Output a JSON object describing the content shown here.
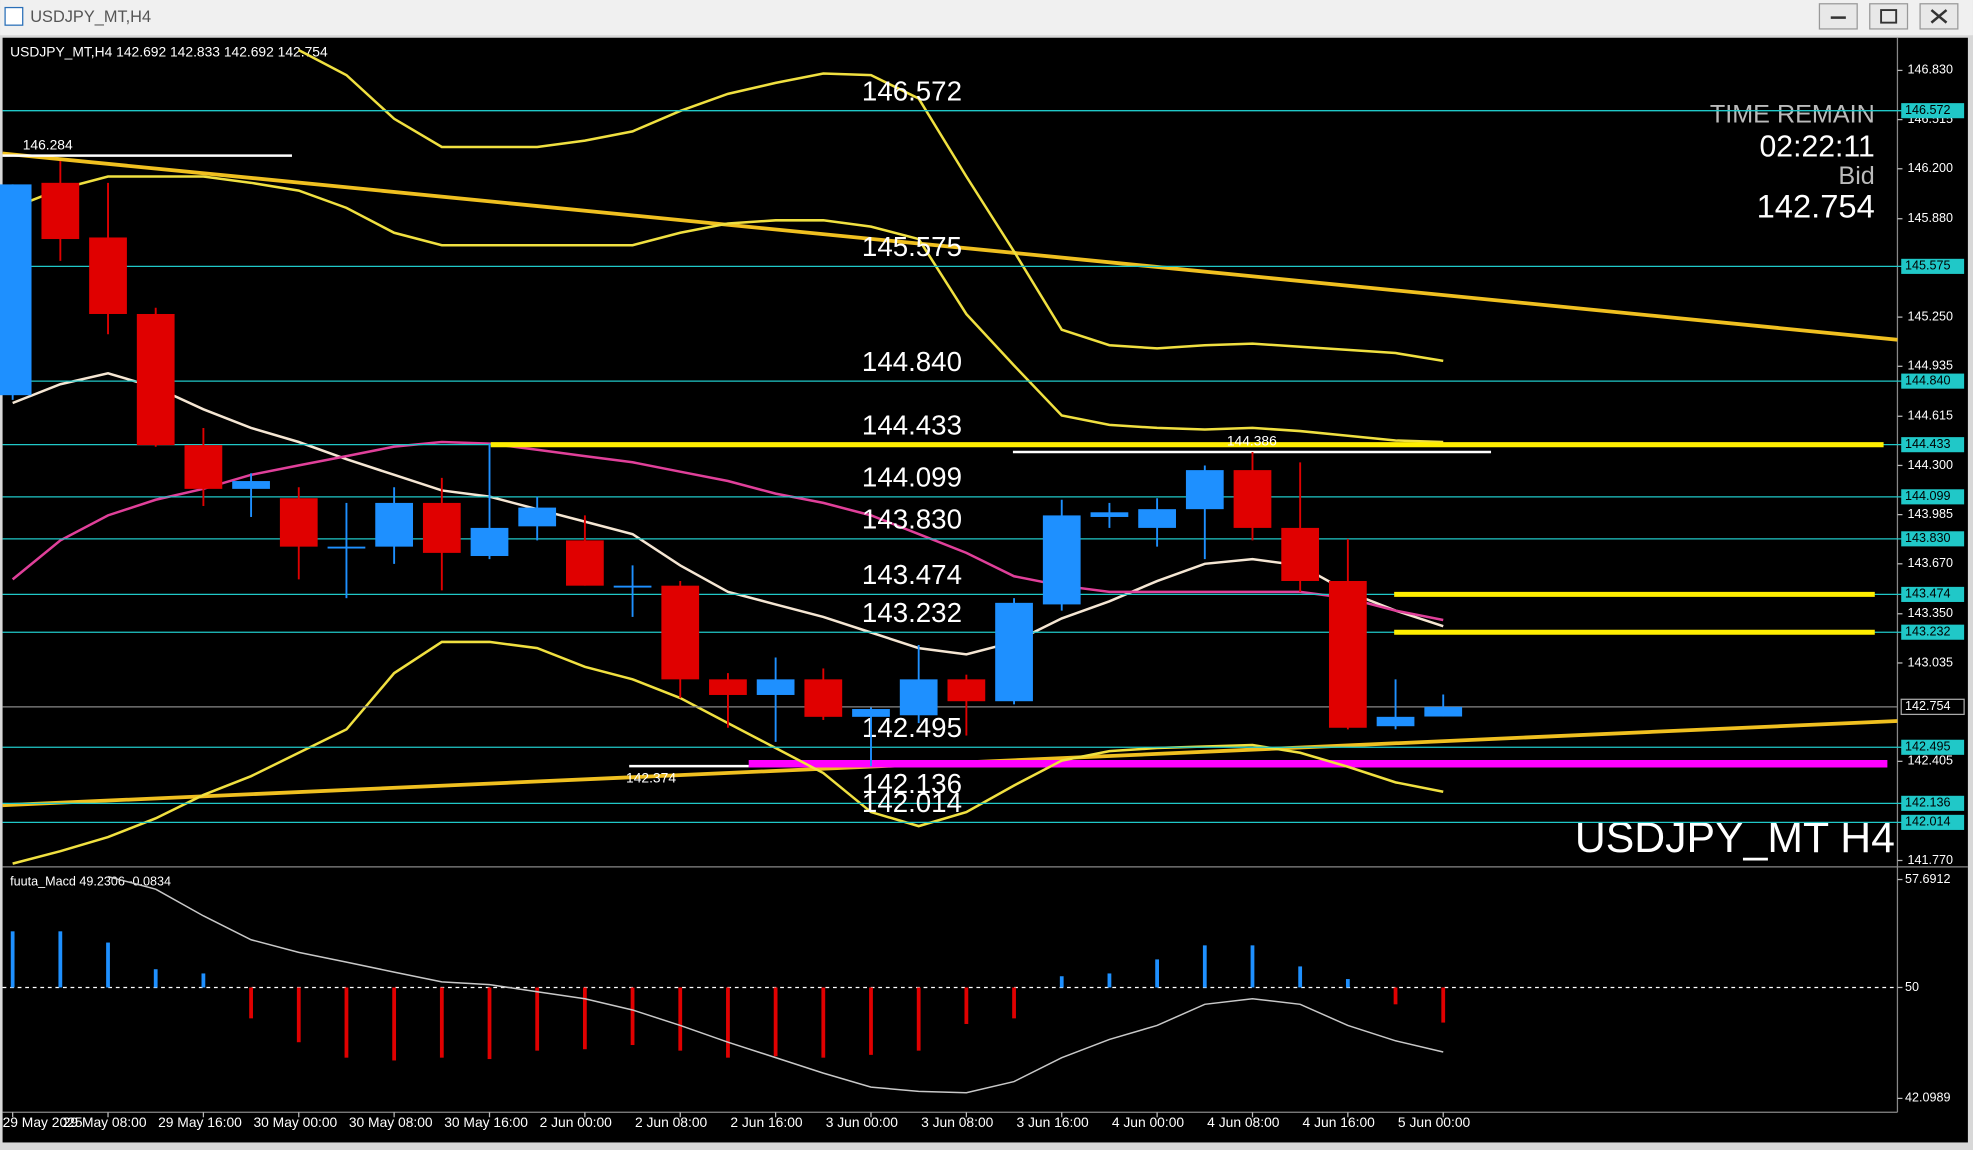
{
  "window_title": "USDJPY_MT,H4",
  "chart_data": {
    "type": "candlestick",
    "header": "USDJPY_MT,H4 142.692 142.833 142.692 142.754",
    "watermark": "USDJPY_MT H4",
    "time_remain_label": "TIME REMAIN",
    "time_remain": "02:22:11",
    "bid_label": "Bid",
    "bid": 142.754,
    "categories": [
      "29 May 2025",
      null,
      "29 May 08:00",
      null,
      "29 May 16:00",
      null,
      "30 May 00:00",
      null,
      "30 May 08:00",
      null,
      "30 May 16:00",
      null,
      "2 Jun 00:00",
      null,
      "2 Jun 08:00",
      null,
      "2 Jun 16:00",
      null,
      "3 Jun 00:00",
      null,
      "3 Jun 08:00",
      null,
      "3 Jun 16:00",
      null,
      "4 Jun 00:00",
      null,
      "4 Jun 08:00",
      null,
      "4 Jun 16:00",
      null,
      "5 Jun 00:00"
    ],
    "open": [
      144.75,
      146.11,
      145.76,
      145.27,
      144.43,
      144.15,
      144.09,
      143.78,
      143.78,
      144.06,
      143.72,
      143.91,
      143.82,
      143.53,
      143.53,
      142.93,
      142.83,
      142.93,
      142.69,
      142.7,
      142.93,
      142.79,
      143.41,
      143.97,
      143.9,
      144.02,
      144.27,
      143.9,
      143.56,
      142.63,
      142.692
    ],
    "high": [
      146.1,
      146.25,
      146.11,
      145.31,
      144.54,
      144.25,
      144.16,
      144.06,
      144.16,
      144.22,
      144.44,
      144.1,
      143.98,
      143.66,
      143.56,
      142.97,
      143.07,
      143.0,
      142.75,
      143.15,
      142.96,
      143.45,
      144.08,
      144.06,
      144.09,
      144.3,
      144.386,
      144.32,
      143.83,
      142.93,
      142.833
    ],
    "low": [
      144.72,
      145.61,
      145.14,
      144.42,
      144.04,
      143.97,
      143.57,
      143.45,
      143.67,
      143.5,
      143.7,
      143.82,
      143.53,
      143.33,
      142.81,
      142.62,
      142.53,
      142.67,
      142.374,
      142.65,
      142.57,
      142.77,
      143.37,
      143.9,
      143.78,
      143.7,
      143.82,
      143.49,
      142.61,
      142.61,
      142.692
    ],
    "close": [
      146.1,
      145.75,
      145.27,
      144.43,
      144.15,
      144.2,
      143.78,
      143.78,
      144.06,
      143.74,
      143.9,
      144.03,
      143.53,
      143.53,
      142.93,
      142.83,
      142.93,
      142.69,
      142.74,
      142.93,
      142.79,
      143.42,
      143.98,
      144.0,
      144.02,
      144.27,
      143.9,
      143.56,
      142.62,
      142.69,
      142.754
    ],
    "up_color": "#1e90ff",
    "down_color": "#e00000",
    "ylim": [
      141.745,
      147.015
    ],
    "yticks": [
      {
        "value": 146.83,
        "label": "146.830"
      },
      146.515,
      {
        "value": 146.2,
        "label": "146.200"
      },
      {
        "value": 145.88,
        "label": "145.880"
      },
      {
        "value": 145.25,
        "label": "145.250"
      },
      144.935,
      144.615,
      {
        "value": 144.3,
        "label": "144.300"
      },
      143.985,
      {
        "value": 143.67,
        "label": "143.670"
      },
      {
        "value": 143.35,
        "label": "143.350"
      },
      143.035,
      142.405,
      {
        "value": 141.77,
        "label": "141.770"
      }
    ],
    "levels": [
      146.572,
      145.575,
      {
        "value": 144.84,
        "label": "144.840"
      },
      144.433,
      144.099,
      {
        "value": 143.83,
        "label": "143.830"
      },
      143.474,
      143.232,
      142.495,
      142.136,
      142.014
    ],
    "level_color": "#20c8c8",
    "price_marks": [
      146.284,
      144.386,
      142.374
    ],
    "overlays": [
      {
        "color": "#f5e6d3",
        "values": [
          144.7,
          144.82,
          144.89,
          144.8,
          144.66,
          144.54,
          144.45,
          144.34,
          144.24,
          144.14,
          144.1,
          144.02,
          143.94,
          143.86,
          143.66,
          143.49,
          143.41,
          143.33,
          143.23,
          143.13,
          143.09,
          143.17,
          143.32,
          143.43,
          143.56,
          143.67,
          143.7,
          143.66,
          143.49,
          143.37,
          143.27
        ]
      },
      {
        "color": "#e0409a",
        "values": [
          143.57,
          143.82,
          143.98,
          144.08,
          144.15,
          144.24,
          144.3,
          144.36,
          144.42,
          144.45,
          144.44,
          144.4,
          144.36,
          144.32,
          144.26,
          144.2,
          144.12,
          144.06,
          143.98,
          143.86,
          143.74,
          143.59,
          143.53,
          143.49,
          143.49,
          143.49,
          143.49,
          143.49,
          143.45,
          143.37,
          143.31
        ]
      },
      {
        "color": "#f0e040",
        "values": [
          145.95,
          146.07,
          146.15,
          146.15,
          146.15,
          146.11,
          146.06,
          145.95,
          145.79,
          145.71,
          145.71,
          145.71,
          145.71,
          145.71,
          145.79,
          145.85,
          145.87,
          145.87,
          145.83,
          145.75,
          145.27,
          144.94,
          144.62,
          144.56,
          144.54,
          144.53,
          144.54,
          144.52,
          144.49,
          144.46,
          144.45
        ]
      },
      {
        "color": "#f0e040",
        "values": [
          141.75,
          141.83,
          141.92,
          142.04,
          142.19,
          142.31,
          142.46,
          142.61,
          142.97,
          143.17,
          143.17,
          143.13,
          143.01,
          142.93,
          142.81,
          142.65,
          142.49,
          142.33,
          142.08,
          141.99,
          142.08,
          142.25,
          142.41,
          142.47,
          142.49,
          142.5,
          142.51,
          142.46,
          142.37,
          142.27,
          142.21
        ]
      },
      {
        "color": "#f0e040",
        "values": [
          null,
          null,
          null,
          null,
          null,
          null,
          146.96,
          146.8,
          146.52,
          146.34,
          146.34,
          146.34,
          146.38,
          146.44,
          146.57,
          146.68,
          146.75,
          146.81,
          146.8,
          146.65,
          146.15,
          145.67,
          145.17,
          145.07,
          145.05,
          145.07,
          145.08,
          145.06,
          145.04,
          145.02,
          144.97
        ]
      }
    ],
    "macd": {
      "title": "fuuta_Macd 49.2306 -0.0834",
      "ylim": [
        41.29,
        58.5
      ],
      "yticks": [
        57.6912,
        50,
        42.0989
      ],
      "baseline": 50,
      "histogram": [
        54.0,
        54.0,
        53.2,
        51.3,
        51.0,
        47.8,
        46.1,
        45.0,
        44.8,
        45.0,
        44.9,
        45.5,
        45.6,
        45.9,
        45.5,
        45.0,
        45.1,
        45.0,
        45.2,
        45.5,
        47.4,
        47.8,
        50.8,
        51.0,
        52.0,
        53.0,
        53.0,
        51.5,
        50.6,
        48.8,
        47.5
      ],
      "line": [
        null,
        null,
        57.9,
        57.0,
        55.1,
        53.4,
        52.5,
        51.8,
        51.1,
        50.4,
        50.2,
        49.7,
        49.2,
        48.4,
        47.3,
        46.1,
        45.0,
        43.9,
        42.9,
        42.6,
        42.5,
        43.3,
        45.0,
        46.3,
        47.3,
        48.8,
        49.2,
        48.8,
        47.3,
        46.2,
        45.4
      ],
      "line_color": "#c8c8c8"
    }
  }
}
